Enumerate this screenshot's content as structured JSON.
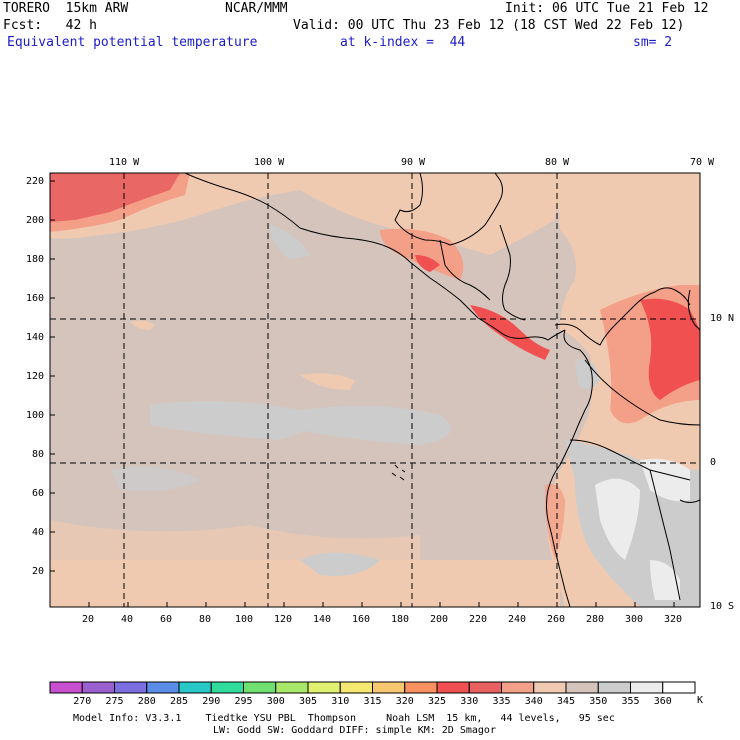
{
  "header": {
    "model": "TORERO  15km ARW",
    "center": "NCAR/MMM",
    "init": "Init: 06 UTC Tue 21 Feb 12",
    "fcst": "Fcst:   42 h",
    "valid": "Valid: 00 UTC Thu 23 Feb 12 (18 CST Wed 22 Feb 12)",
    "field": "Equivalent potential temperature",
    "level": "at k-index =  44",
    "smoothing": "sm= 2"
  },
  "map": {
    "lon_labels": [
      "110 W",
      "100 W",
      "90 W",
      "80 W",
      "70 W"
    ],
    "lat_labels": [
      "10 N",
      "0",
      "10 S"
    ],
    "x_ticks": [
      "20",
      "40",
      "60",
      "80",
      "100",
      "120",
      "140",
      "160",
      "180",
      "200",
      "220",
      "240",
      "260",
      "280",
      "300",
      "320"
    ],
    "y_ticks": [
      "20",
      "40",
      "60",
      "80",
      "100",
      "120",
      "140",
      "160",
      "180",
      "200",
      "220"
    ]
  },
  "colorbar": {
    "unit": "K",
    "labels": [
      "270",
      "275",
      "280",
      "285",
      "290",
      "295",
      "300",
      "305",
      "310",
      "315",
      "320",
      "325",
      "330",
      "335",
      "340",
      "345",
      "350",
      "355",
      "360"
    ],
    "colors": [
      "#c84fcf",
      "#9a60d0",
      "#7a6ee0",
      "#5a8de8",
      "#28c8c8",
      "#30dc9c",
      "#6ee070",
      "#a8e868",
      "#e0f070",
      "#f5e870",
      "#f8c870",
      "#f89060",
      "#f05050",
      "#e86060",
      "#f4a088",
      "#f0cab0",
      "#d4c4bc",
      "#cccccc",
      "#ececec",
      "#ffffff"
    ]
  },
  "footer": {
    "line1": "Model Info: V3.3.1    Tiedtke YSU PBL  Thompson     Noah LSM  15 km,   44 levels,   95 sec",
    "line2": "LW: Godd SW: Goddard DIFF: simple KM: 2D Smagor"
  }
}
